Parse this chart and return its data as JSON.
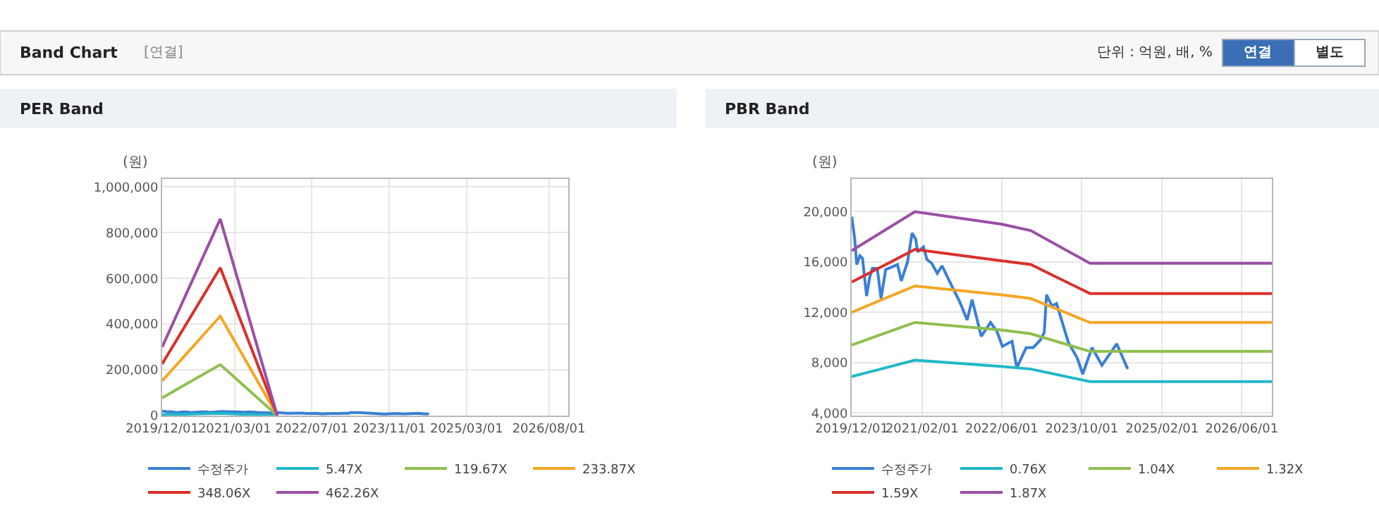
{
  "chart_data": [
    {
      "type": "other",
      "title": "Band Chart",
      "annotations": [
        "[연결]",
        "단위 : 억원, 배, %",
        "연결",
        "별도"
      ]
    },
    {
      "type": "line",
      "title": "PER Band",
      "ylabel": "(원)",
      "grid": true,
      "legend": "bottom",
      "xlim": [
        "2019-12-01",
        "2026-12-01"
      ],
      "xticks": [
        {
          "value": "2019-12-01",
          "label": "2019/12/01"
        },
        {
          "value": "2021-03-01",
          "label": "2021/03/01"
        },
        {
          "value": "2022-07-01",
          "label": "2022/07/01"
        },
        {
          "value": "2023-11-01",
          "label": "2023/11/01"
        },
        {
          "value": "2025-03-01",
          "label": "2025/03/01"
        },
        {
          "value": "2026-08-01",
          "label": "2026/08/01"
        }
      ],
      "ylim": [
        0,
        1035000
      ],
      "yticks": [
        0,
        {
          "value": 200000,
          "label": "200,000"
        },
        {
          "value": 400000,
          "label": "400,000"
        },
        {
          "value": 600000,
          "label": "600,000"
        },
        {
          "value": 800000,
          "label": "800,000"
        },
        {
          "value": 1000000,
          "label": "1,000,000"
        }
      ],
      "series": [
        {
          "name": "수정주가",
          "color": "#3a7fd5",
          "x": [
            "2019-12-01",
            "2019-12-10",
            "2019-12-20",
            "2020-01-01",
            "2020-01-20",
            "2020-02-05",
            "2020-03-01",
            "2020-03-20",
            "2020-04-05",
            "2020-05-05",
            "2020-05-28",
            "2020-06-25",
            "2020-08-01",
            "2020-09-05",
            "2020-09-28",
            "2020-11-05",
            "2020-12-03",
            "2020-12-25",
            "2021-01-05",
            "2021-02-10",
            "2021-03-03",
            "2021-04-01",
            "2021-05-05",
            "2021-06-03",
            "2021-07-25",
            "2021-09-20",
            "2021-11-03",
            "2021-12-03",
            "2022-01-28",
            "2022-03-25",
            "2022-05-03",
            "2022-06-05",
            "2022-08-03",
            "2022-09-01",
            "2022-10-28",
            "2022-12-10",
            "2023-01-22",
            "2023-02-15",
            "2023-03-01",
            "2023-04-03",
            "2023-05-01",
            "2023-07-12",
            "2023-09-03",
            "2023-10-07",
            "2023-12-03",
            "2024-02-01",
            "2024-05-01",
            "2024-06-07",
            "2024-07-07"
          ],
          "values": [
            20000,
            19000,
            18000,
            16000,
            17000,
            16000,
            13000,
            15000,
            16000,
            16000,
            13000,
            15000,
            16000,
            16000,
            14000,
            16000,
            18000,
            18000,
            17000,
            17000,
            16000,
            16000,
            15000,
            16000,
            14000,
            13000,
            11000,
            13000,
            10000,
            11000,
            11000,
            9000,
            10000,
            8000,
            9000,
            9000,
            10000,
            10000,
            13000,
            13000,
            13000,
            10000,
            8000,
            7000,
            9000,
            8000,
            10000,
            8000,
            8000
          ]
        },
        {
          "name": "5.47X",
          "color": "#1fb8c9",
          "x": [
            "2019-12-01",
            "2020-12-01",
            "2021-11-25"
          ],
          "values": [
            4000,
            10000,
            0
          ]
        },
        {
          "name": "119.67X",
          "color": "#8fbf4f",
          "x": [
            "2019-12-01",
            "2020-12-01",
            "2021-11-25"
          ],
          "values": [
            78000,
            223000,
            0
          ]
        },
        {
          "name": "233.87X",
          "color": "#f5a623",
          "x": [
            "2019-12-01",
            "2020-12-01",
            "2021-11-25"
          ],
          "values": [
            152000,
            435000,
            0
          ]
        },
        {
          "name": "348.06X",
          "color": "#d9302a",
          "x": [
            "2019-12-01",
            "2020-12-01",
            "2021-11-25"
          ],
          "values": [
            226000,
            647000,
            0
          ]
        },
        {
          "name": "462.26X",
          "color": "#9b4fa5",
          "x": [
            "2019-12-01",
            "2020-12-01",
            "2021-11-25"
          ],
          "values": [
            300000,
            860000,
            0
          ]
        }
      ]
    },
    {
      "type": "line",
      "title": "PBR Band",
      "ylabel": "(원)",
      "grid": true,
      "legend": "bottom",
      "xlim": [
        "2019-12-01",
        "2026-12-01"
      ],
      "xticks": [
        {
          "value": "2019-12-01",
          "label": "2019/12/01"
        },
        {
          "value": "2021-02-01",
          "label": "2021/02/01"
        },
        {
          "value": "2022-06-01",
          "label": "2022/06/01"
        },
        {
          "value": "2023-10-01",
          "label": "2023/10/01"
        },
        {
          "value": "2025-02-01",
          "label": "2025/02/01"
        },
        {
          "value": "2026-06-01",
          "label": "2026/06/01"
        }
      ],
      "ylim": [
        3800,
        22600
      ],
      "yticks": [
        {
          "value": 4000,
          "label": "4,000"
        },
        {
          "value": 8000,
          "label": "8,000"
        },
        {
          "value": 12000,
          "label": "12,000"
        },
        {
          "value": 16000,
          "label": "16,000"
        },
        {
          "value": 20000,
          "label": "20,000"
        }
      ],
      "series": [
        {
          "name": "수정주가",
          "color": "#3a7fd5",
          "x": [
            "2019-12-01",
            "2019-12-10",
            "2019-12-20",
            "2020-01-01",
            "2020-01-20",
            "2020-02-05",
            "2020-03-01",
            "2020-03-20",
            "2020-04-05",
            "2020-05-05",
            "2020-05-28",
            "2020-06-25",
            "2020-08-01",
            "2020-09-05",
            "2020-09-28",
            "2020-11-05",
            "2020-12-03",
            "2020-12-25",
            "2021-01-05",
            "2021-02-10",
            "2021-03-03",
            "2021-04-01",
            "2021-05-05",
            "2021-06-03",
            "2021-07-25",
            "2021-09-20",
            "2021-11-03",
            "2021-12-03",
            "2022-01-28",
            "2022-03-25",
            "2022-05-03",
            "2022-06-05",
            "2022-08-03",
            "2022-09-01",
            "2022-10-28",
            "2022-12-10",
            "2023-01-22",
            "2023-02-15",
            "2023-03-01",
            "2023-04-03",
            "2023-05-01",
            "2023-07-12",
            "2023-09-03",
            "2023-10-07",
            "2023-12-03",
            "2024-02-01",
            "2024-05-01",
            "2024-06-07",
            "2024-07-07"
          ],
          "values": [
            19600,
            18800,
            17800,
            15800,
            16500,
            16300,
            13300,
            14800,
            15500,
            15500,
            13100,
            15400,
            15600,
            15800,
            14500,
            16000,
            18300,
            17800,
            16800,
            17200,
            16200,
            15900,
            15100,
            15700,
            14300,
            12800,
            11400,
            13000,
            10100,
            11200,
            10500,
            9300,
            9700,
            7600,
            9200,
            9200,
            9800,
            10400,
            13400,
            12500,
            12700,
            9600,
            8400,
            7100,
            9200,
            7800,
            9500,
            8400,
            7500
          ]
        },
        {
          "name": "0.76X",
          "color": "#1fb8c9",
          "x": [
            "2019-12-01",
            "2020-12-20",
            "2022-06-01",
            "2022-11-25",
            "2023-11-20",
            "2026-12-01"
          ],
          "values": [
            6900,
            8200,
            7700,
            7500,
            6500,
            6500
          ]
        },
        {
          "name": "1.04X",
          "color": "#8fbf4f",
          "x": [
            "2019-12-01",
            "2020-12-20",
            "2022-06-01",
            "2022-11-25",
            "2023-11-20",
            "2026-12-01"
          ],
          "values": [
            9400,
            11200,
            10600,
            10300,
            8900,
            8900
          ]
        },
        {
          "name": "1.32X",
          "color": "#f5a623",
          "x": [
            "2019-12-01",
            "2020-12-20",
            "2022-06-01",
            "2022-11-25",
            "2023-11-20",
            "2026-12-01"
          ],
          "values": [
            12000,
            14100,
            13400,
            13100,
            11200,
            11200
          ]
        },
        {
          "name": "1.59X",
          "color": "#d9302a",
          "x": [
            "2019-12-01",
            "2020-12-20",
            "2022-06-01",
            "2022-11-25",
            "2023-11-20",
            "2026-12-01"
          ],
          "values": [
            14400,
            17000,
            16100,
            15800,
            13500,
            13500
          ]
        },
        {
          "name": "1.87X",
          "color": "#9b4fa5",
          "x": [
            "2019-12-01",
            "2020-12-20",
            "2022-06-01",
            "2022-11-25",
            "2023-11-20",
            "2026-12-01"
          ],
          "values": [
            16900,
            20000,
            19000,
            18500,
            15900,
            15900
          ]
        }
      ]
    }
  ]
}
